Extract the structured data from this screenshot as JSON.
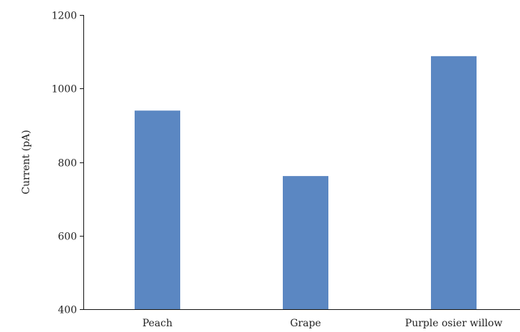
{
  "chart_data": {
    "type": "bar",
    "title": "",
    "xlabel": "",
    "ylabel": "Current (pA)",
    "categories": [
      "Peach",
      "Grape",
      "Purple osier willow"
    ],
    "values": [
      940,
      762,
      1088
    ],
    "ylim": [
      400,
      1200
    ],
    "yticks": [
      "400",
      "600",
      "800",
      "1000",
      "1200"
    ],
    "grid": false,
    "legend": "none",
    "bar_color": "#5b87c2"
  }
}
